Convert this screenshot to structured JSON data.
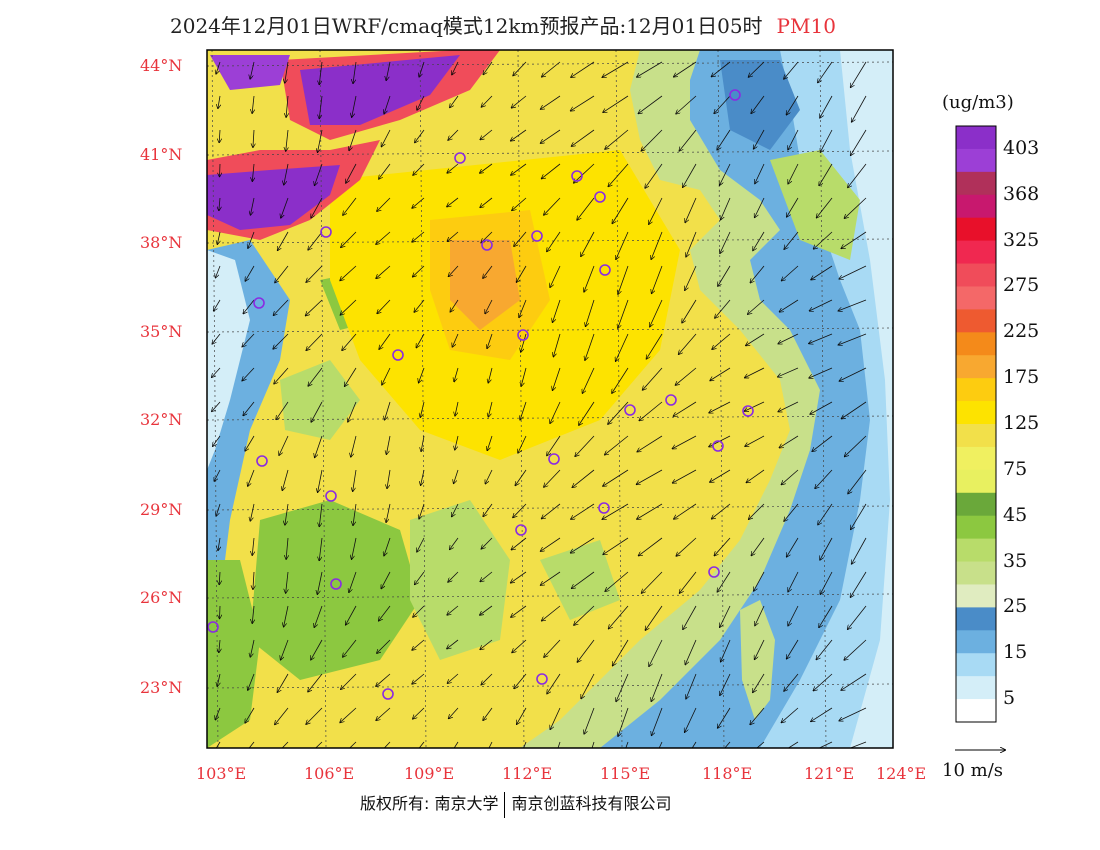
{
  "title": {
    "main": "2024年12月01日WRF/cmaq模式12km预报产品:12月01日05时",
    "pollutant": "PM10"
  },
  "legend": {
    "unit": "(ug/m3)",
    "bins": [
      {
        "label": "403",
        "color": "#8b2fc9"
      },
      {
        "label": "",
        "color": "#9c3fd6"
      },
      {
        "label": "368",
        "color": "#b0305a"
      },
      {
        "label": "",
        "color": "#c8186e"
      },
      {
        "label": "325",
        "color": "#e8102a"
      },
      {
        "label": "",
        "color": "#f02850"
      },
      {
        "label": "275",
        "color": "#f04c5a"
      },
      {
        "label": "",
        "color": "#f46868"
      },
      {
        "label": "225",
        "color": "#ee5a30"
      },
      {
        "label": "",
        "color": "#f48a1a"
      },
      {
        "label": "175",
        "color": "#f8a830"
      },
      {
        "label": "",
        "color": "#fdcc10"
      },
      {
        "label": "125",
        "color": "#fde300"
      },
      {
        "label": "",
        "color": "#f2e04a"
      },
      {
        "label": "75",
        "color": "#f0f060"
      },
      {
        "label": "",
        "color": "#e8f060"
      },
      {
        "label": "45",
        "color": "#6aa83a"
      },
      {
        "label": "",
        "color": "#8cc840"
      },
      {
        "label": "35",
        "color": "#b8dc6a"
      },
      {
        "label": "",
        "color": "#c8e08a"
      },
      {
        "label": "25",
        "color": "#e0ecc0"
      },
      {
        "label": "",
        "color": "#4a8cc8"
      },
      {
        "label": "15",
        "color": "#6cb0e0"
      },
      {
        "label": "",
        "color": "#a8daf4"
      },
      {
        "label": "5",
        "color": "#d4eef8"
      },
      {
        "label": "",
        "color": "#ffffff"
      }
    ]
  },
  "wind_scale": {
    "label": "10 m/s"
  },
  "axes": {
    "lat": [
      "44°N",
      "41°N",
      "38°N",
      "35°N",
      "32°N",
      "29°N",
      "26°N",
      "23°N"
    ],
    "lon": [
      "103°E",
      "106°E",
      "109°E",
      "112°E",
      "115°E",
      "118°E",
      "121°E",
      "124°E"
    ]
  },
  "footer": {
    "copyright": "版权所有: 南京大学",
    "company": "南京创蓝科技有限公司"
  },
  "colors": {
    "axis_label": "#e8343c",
    "station_marker": "#8a2be2"
  }
}
